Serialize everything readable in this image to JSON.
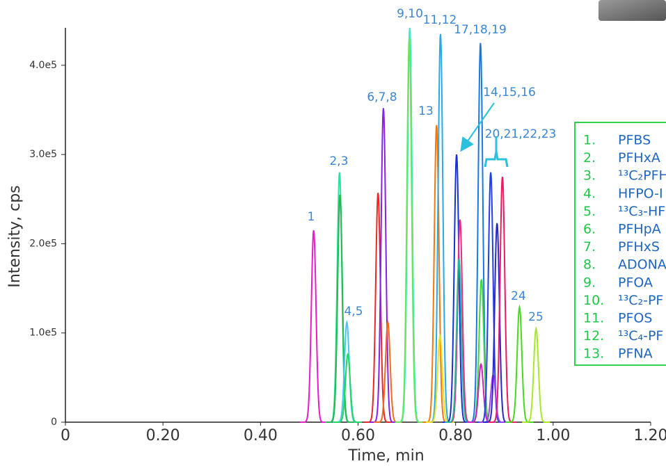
{
  "chart_data": {
    "type": "chromatogram",
    "x_label": "Time, min",
    "y_label": "Intensity, cps",
    "xlim": [
      0,
      1.2
    ],
    "ylim": [
      0,
      442000
    ],
    "xticks": [
      0,
      {
        "value": 0.2,
        "label": "0.20"
      },
      {
        "value": 0.4,
        "label": "0.40"
      },
      {
        "value": 0.6,
        "label": "0.60"
      },
      {
        "value": 0.8,
        "label": "0.80"
      },
      {
        "value": 1.0,
        "label": "1.00"
      },
      {
        "value": 1.2,
        "label": "1.20"
      }
    ],
    "yticks": [
      0,
      {
        "value": 100000,
        "label": "1.0e5"
      },
      {
        "value": 200000,
        "label": "2.0e5"
      },
      {
        "value": 300000,
        "label": "3.0e5"
      },
      {
        "value": 400000,
        "label": "4.0e5"
      }
    ],
    "peaks": [
      {
        "rt": 0.509,
        "height": 215000,
        "color": "#e81cc8",
        "label": "1"
      },
      {
        "rt": 0.562,
        "height": 280000,
        "color": "#2ee0a0",
        "label": "2,3"
      },
      {
        "rt": 0.563,
        "height": 255000,
        "color": "#28b850"
      },
      {
        "rt": 0.577,
        "height": 112000,
        "color": "#48c8f0",
        "label": "4,5"
      },
      {
        "rt": 0.579,
        "height": 76000,
        "color": "#20d860"
      },
      {
        "rt": 0.641,
        "height": 257000,
        "color": "#e82828"
      },
      {
        "rt": 0.652,
        "height": 352000,
        "color": "#8a20e8",
        "label": "6,7,8"
      },
      {
        "rt": 0.661,
        "height": 112000,
        "color": "#f06a20"
      },
      {
        "rt": 0.706,
        "height": 442000,
        "color": "#30f0c8",
        "label": "9,10"
      },
      {
        "rt": 0.705,
        "height": 430000,
        "color": "#70e060"
      },
      {
        "rt": 0.761,
        "height": 333000,
        "color": "#f07810",
        "label": "13"
      },
      {
        "rt": 0.769,
        "height": 435000,
        "color": "#28a8e8",
        "label": "11,12"
      },
      {
        "rt": 0.768,
        "height": 97000,
        "color": "#e8e020"
      },
      {
        "rt": 0.802,
        "height": 300000,
        "color": "#1830d8",
        "label": "14,15,16"
      },
      {
        "rt": 0.809,
        "height": 227000,
        "color": "#f02878"
      },
      {
        "rt": 0.807,
        "height": 183000,
        "color": "#20b8a0"
      },
      {
        "rt": 0.851,
        "height": 425000,
        "color": "#1878e8",
        "label": "17,18,19"
      },
      {
        "rt": 0.853,
        "height": 160000,
        "color": "#40d840"
      },
      {
        "rt": 0.852,
        "height": 65000,
        "color": "#d020c0"
      },
      {
        "rt": 0.872,
        "height": 280000,
        "color": "#2040e8",
        "label": "20,21,22,23"
      },
      {
        "rt": 0.877,
        "height": 53000,
        "color": "#a040e8"
      },
      {
        "rt": 0.885,
        "height": 223000,
        "color": "#2828c8"
      },
      {
        "rt": 0.896,
        "height": 275000,
        "color": "#f01860"
      },
      {
        "rt": 0.931,
        "height": 129000,
        "color": "#48d820",
        "label": "24"
      },
      {
        "rt": 0.965,
        "height": 105000,
        "color": "#a8e828",
        "label": "25"
      }
    ],
    "legend_items": [
      {
        "number": "1.",
        "name": "PFBS"
      },
      {
        "number": "2.",
        "name": "PFHxA"
      },
      {
        "number": "3.",
        "name": "¹³C₂PFH"
      },
      {
        "number": "4.",
        "name": "HFPO-I"
      },
      {
        "number": "5.",
        "name": "¹³C₃-HF"
      },
      {
        "number": "6.",
        "name": "PFHpA"
      },
      {
        "number": "7.",
        "name": "PFHxS"
      },
      {
        "number": "8.",
        "name": "ADONA"
      },
      {
        "number": "9.",
        "name": "PFOA"
      },
      {
        "number": "10.",
        "name": "¹³C₂-PF"
      },
      {
        "number": "11.",
        "name": "PFOS"
      },
      {
        "number": "12.",
        "name": "¹³C₄-PF"
      },
      {
        "number": "13.",
        "name": "PFNA"
      }
    ]
  }
}
